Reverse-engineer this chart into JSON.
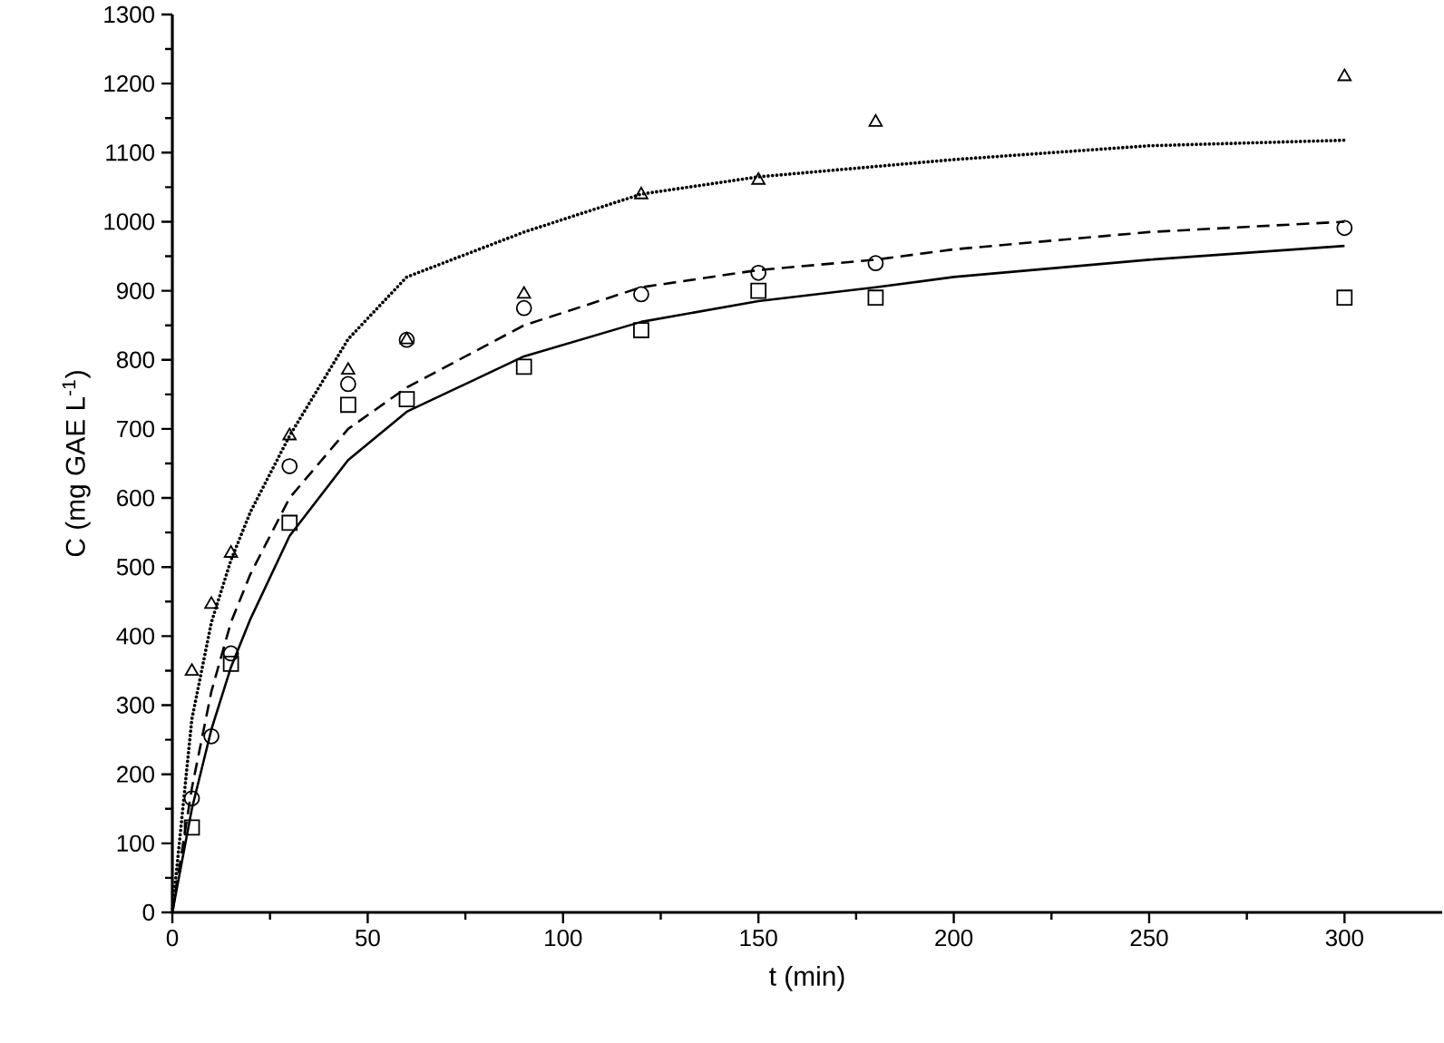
{
  "chart_data": {
    "type": "scatter",
    "xlabel": "t (min)",
    "ylabel": "C (mg GAE L$^{-1}$)",
    "xlim": [
      0,
      325
    ],
    "xticks": [
      0,
      50,
      100,
      150,
      200,
      250,
      300
    ],
    "ylim": [
      0,
      1300
    ],
    "yticks": [
      0,
      100,
      200,
      300,
      400,
      500,
      600,
      700,
      800,
      900,
      1000,
      1100,
      1200,
      1300
    ],
    "grid": false,
    "series": [
      {
        "marker": "square",
        "color": "#000000",
        "x": [
          5,
          10,
          15,
          30,
          45,
          60,
          90,
          120,
          150,
          180,
          300
        ],
        "values": [
          123,
          null,
          360,
          564,
          735,
          743,
          790,
          843,
          900,
          890,
          890
        ]
      },
      {
        "marker": "circle",
        "color": "#000000",
        "x": [
          5,
          10,
          15,
          30,
          45,
          60,
          90,
          120,
          150,
          180,
          300
        ],
        "values": [
          165,
          255,
          375,
          646,
          765,
          829,
          875,
          895,
          926,
          940,
          991
        ]
      },
      {
        "marker": "triangle",
        "color": "#000000",
        "x": [
          5,
          10,
          15,
          30,
          45,
          60,
          90,
          120,
          150,
          180,
          300
        ],
        "values": [
          349,
          446,
          520,
          690,
          785,
          829,
          895,
          1039,
          1060,
          1144,
          1210
        ]
      },
      {
        "type": "line",
        "line_style": "solid",
        "marker": "none",
        "color": "#000000",
        "x": [
          0,
          5,
          10,
          15,
          20,
          30,
          45,
          60,
          90,
          120,
          150,
          180,
          200,
          250,
          300
        ],
        "values": [
          0,
          150,
          265,
          355,
          425,
          545,
          655,
          725,
          805,
          855,
          885,
          905,
          920,
          945,
          965
        ]
      },
      {
        "type": "line",
        "line_style": "dashed",
        "marker": "none",
        "color": "#000000",
        "x": [
          0,
          5,
          10,
          15,
          20,
          30,
          45,
          60,
          90,
          120,
          150,
          180,
          200,
          250,
          300
        ],
        "values": [
          0,
          180,
          320,
          420,
          490,
          600,
          700,
          760,
          850,
          905,
          930,
          945,
          960,
          985,
          1000
        ]
      },
      {
        "type": "line",
        "line_style": "dotted",
        "marker": "none",
        "color": "#000000",
        "x": [
          0,
          5,
          10,
          15,
          20,
          30,
          45,
          60,
          90,
          120,
          150,
          180,
          200,
          250,
          300
        ],
        "values": [
          0,
          280,
          420,
          510,
          580,
          690,
          830,
          920,
          985,
          1040,
          1065,
          1080,
          1090,
          1110,
          1118
        ]
      }
    ]
  }
}
